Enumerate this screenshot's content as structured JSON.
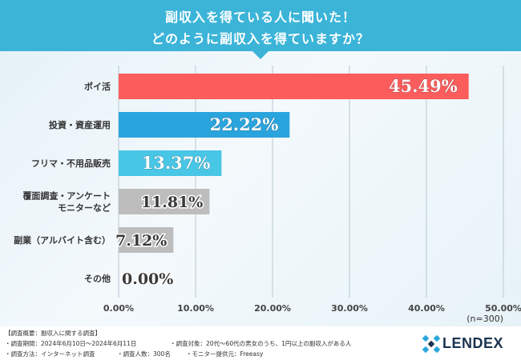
{
  "header": {
    "title_line1": "副収入を得ている人に聞いた！",
    "title_line2": "どのように副収入を得ていますか？"
  },
  "chart_data": {
    "type": "bar",
    "orientation": "horizontal",
    "categories": [
      [
        "ポイ活"
      ],
      [
        "投資・資産運用"
      ],
      [
        "フリマ・不用品販売"
      ],
      [
        "覆面調査・アンケート",
        "モニターなど"
      ],
      [
        "副業（アルバイト含む）"
      ],
      [
        "その他"
      ]
    ],
    "values": [
      45.49,
      22.22,
      13.37,
      11.81,
      7.12,
      0.0
    ],
    "value_labels": [
      "45.49%",
      "22.22%",
      "13.37%",
      "11.81%",
      "7.12%",
      "0.00%"
    ],
    "bar_colors": [
      "#fb5c5c",
      "#2aa4dd",
      "#48c6e6",
      "#bdbdbd",
      "#bdbdbd",
      "#bdbdbd"
    ],
    "xlim": [
      0,
      50
    ],
    "xticks": [
      "0.00%",
      "10.00%",
      "20.00%",
      "30.00%",
      "40.00%",
      "50.00%"
    ],
    "sample_note": "(n=300)",
    "grid": true
  },
  "footer": {
    "line1": "【調査概要：副収入に関する調査】",
    "line2_a": "・調査期間：2024年6月10日～2024年6月11日",
    "line2_b": "・調査対象：20代～60代の男女のうち、1円以上の副収入がある人",
    "line3_a": "・調査方法：インターネット調査",
    "line3_b": "・調査人数：300名",
    "line3_c": "・モニター提供元：Freeasy",
    "brand": "LENDEX"
  },
  "colors": {
    "header": "#3bb4d8",
    "brand": "#1a3350"
  }
}
